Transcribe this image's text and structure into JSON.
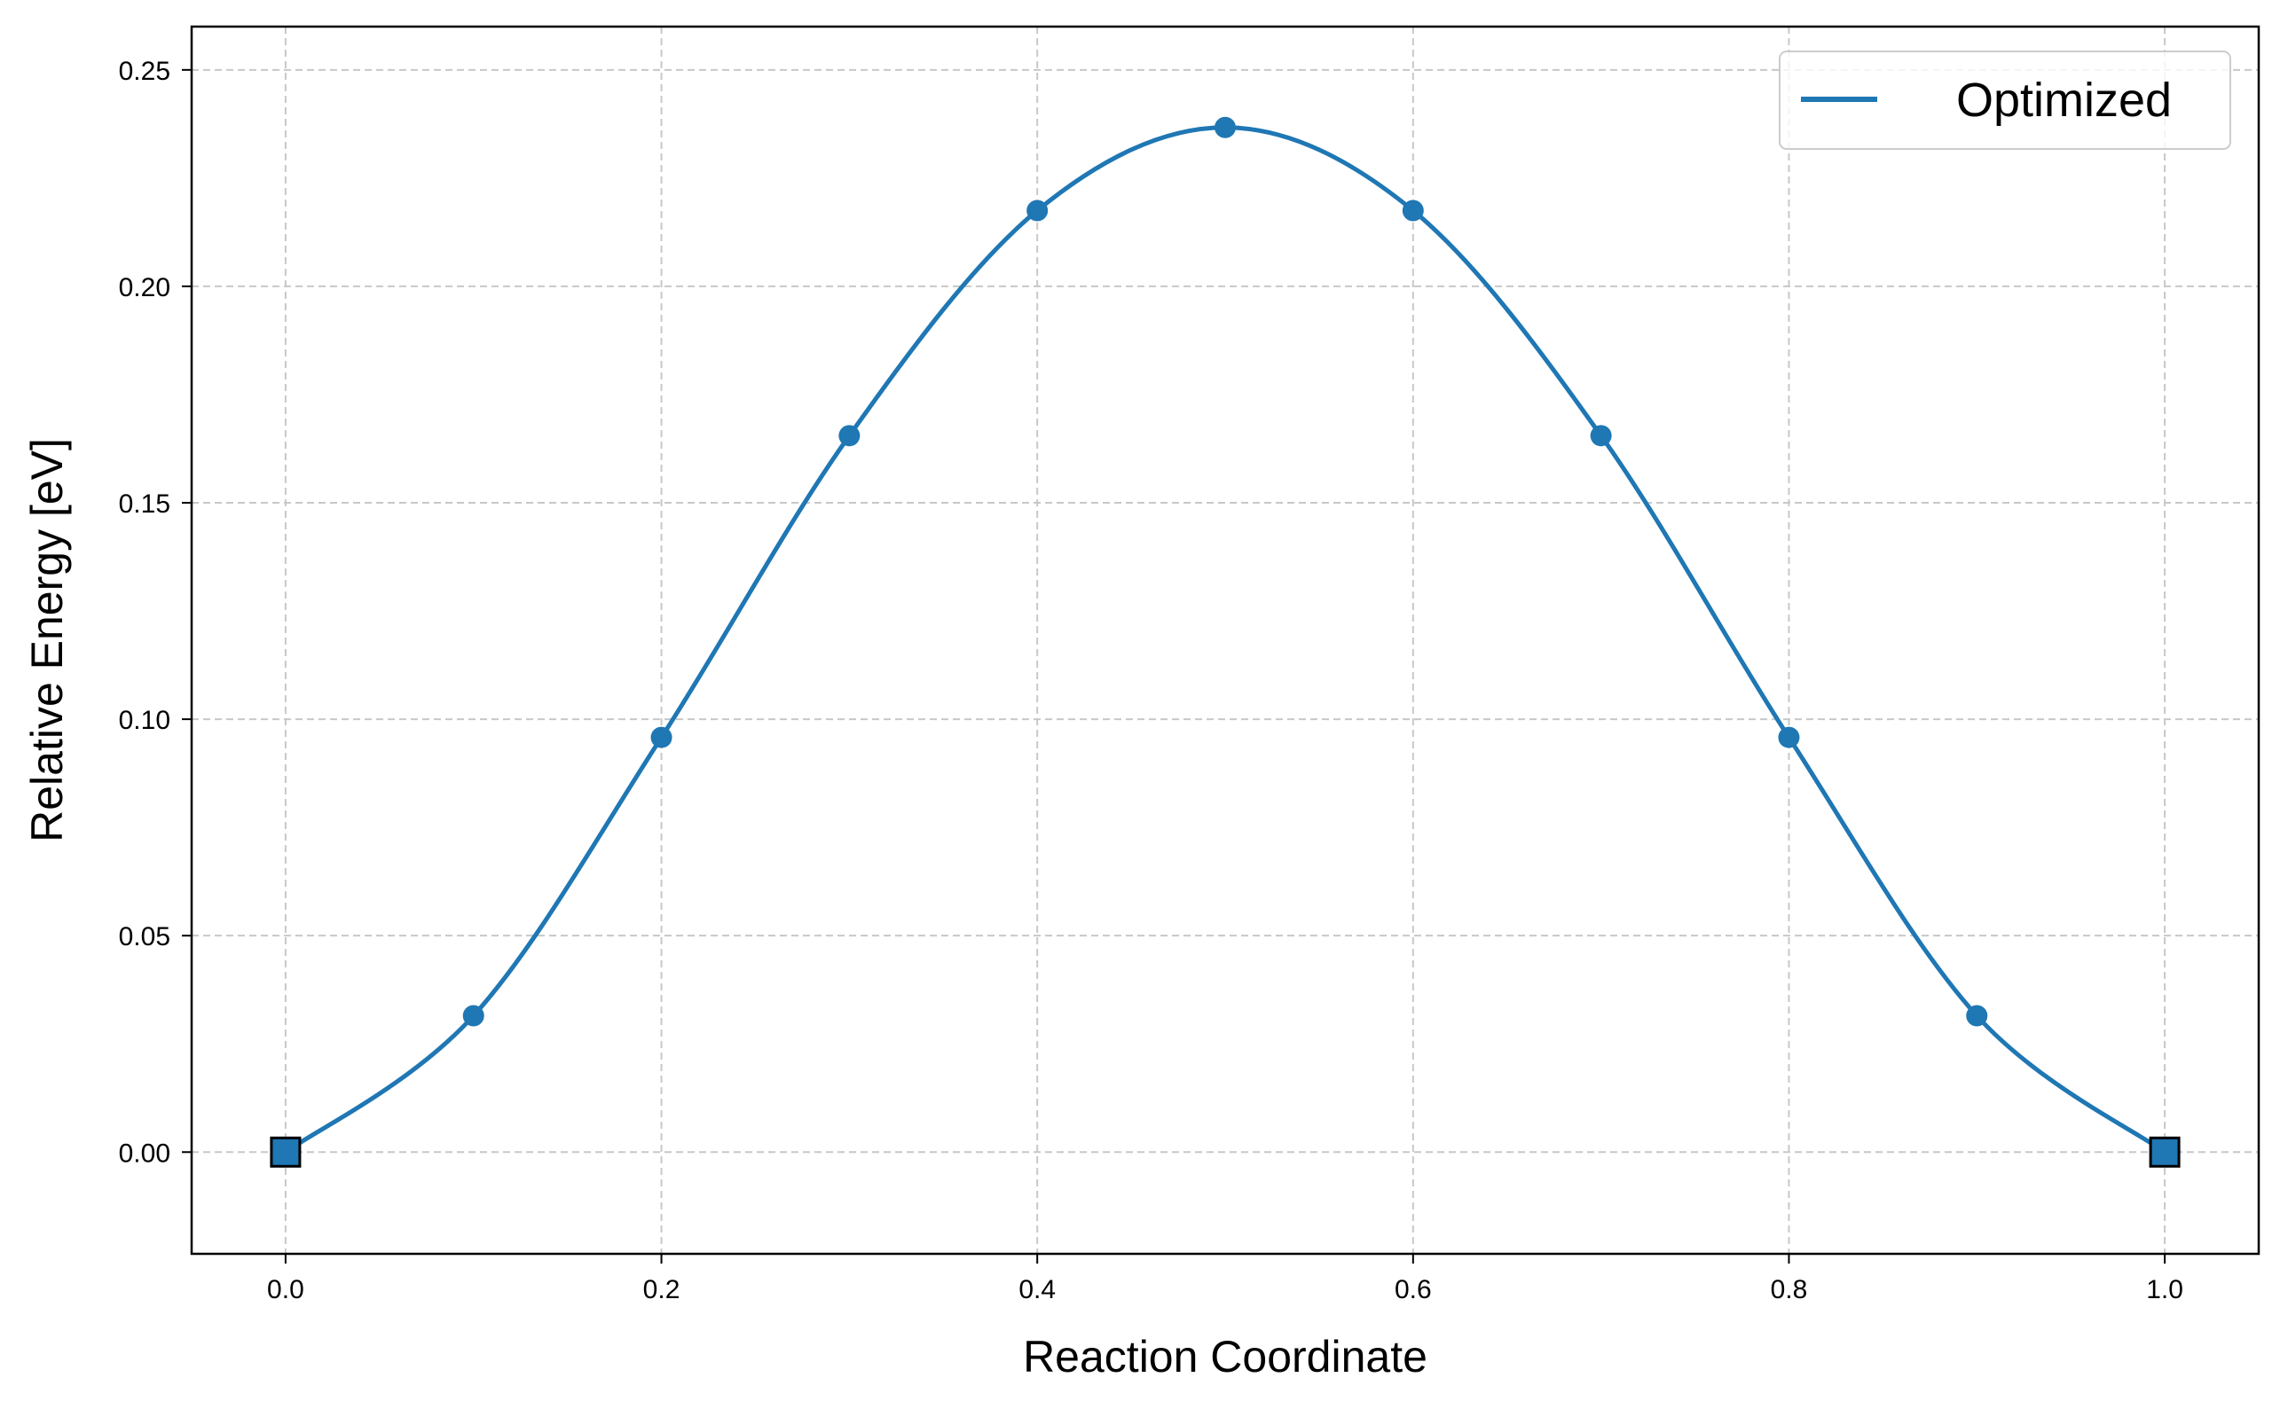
{
  "chart_data": {
    "type": "line",
    "xlabel": "Reaction Coordinate",
    "ylabel": "Relative Energy [eV]",
    "xlim": [
      -0.05,
      1.05
    ],
    "ylim": [
      -0.0235,
      0.26
    ],
    "x_ticks": [
      0.0,
      0.2,
      0.4,
      0.6,
      0.8,
      1.0
    ],
    "x_tick_labels": [
      "0.0",
      "0.2",
      "0.4",
      "0.6",
      "0.8",
      "1.0"
    ],
    "y_ticks": [
      0.0,
      0.05,
      0.1,
      0.15,
      0.2,
      0.25
    ],
    "y_tick_labels": [
      "0.00",
      "0.05",
      "0.10",
      "0.15",
      "0.20",
      "0.25"
    ],
    "grid": true,
    "grid_style": "dashed",
    "legend_position": "top-right",
    "series": [
      {
        "name": "Optimized",
        "color": "#1f77b4",
        "style": "smooth-line",
        "x": [
          0.0,
          0.1,
          0.2,
          0.3,
          0.4,
          0.5,
          0.6,
          0.7,
          0.8,
          0.9,
          1.0
        ],
        "y": [
          0.0,
          0.0315,
          0.0958,
          0.1655,
          0.2175,
          0.2367,
          0.2175,
          0.1655,
          0.0958,
          0.0315,
          0.0
        ]
      }
    ],
    "markers": {
      "circles": {
        "color": "#1f77b4",
        "x": [
          0.1,
          0.2,
          0.3,
          0.4,
          0.5,
          0.6,
          0.7,
          0.8,
          0.9
        ],
        "y": [
          0.0315,
          0.0958,
          0.1655,
          0.2175,
          0.2367,
          0.2175,
          0.1655,
          0.0958,
          0.0315
        ]
      },
      "squares": {
        "color": "#1f77b4",
        "edge_color": "#000000",
        "x": [
          0.0,
          1.0
        ],
        "y": [
          0.0,
          0.0
        ]
      }
    }
  }
}
